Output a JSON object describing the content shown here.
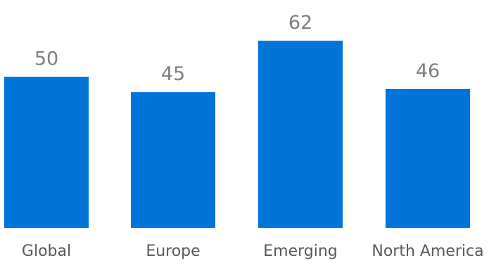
{
  "chart_data": {
    "type": "bar",
    "categories": [
      "Global",
      "Europe",
      "Emerging",
      "North America"
    ],
    "values": [
      50,
      45,
      62,
      46
    ],
    "value_labels": [
      "50",
      "45",
      "62",
      "46"
    ],
    "bar_color": "#0074d9",
    "ylim": [
      0,
      62
    ],
    "grid": false,
    "legend": "none"
  }
}
